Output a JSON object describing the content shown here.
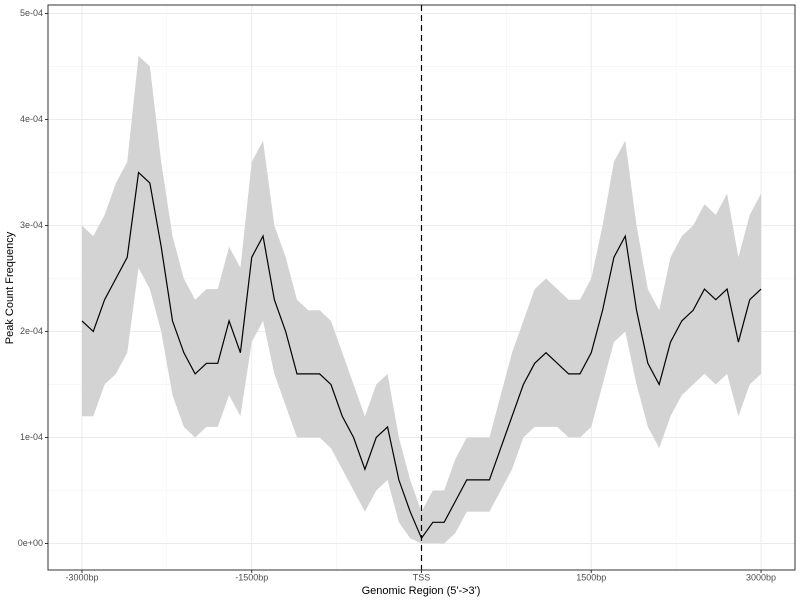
{
  "chart_data": {
    "type": "line",
    "xlabel": "Genomic Region (5'->3')",
    "ylabel": "Peak Count Frequency",
    "x": [
      -3000,
      -2900,
      -2800,
      -2700,
      -2600,
      -2500,
      -2400,
      -2300,
      -2200,
      -2100,
      -2000,
      -1900,
      -1800,
      -1700,
      -1600,
      -1500,
      -1400,
      -1300,
      -1200,
      -1100,
      -1000,
      -900,
      -800,
      -700,
      -600,
      -500,
      -400,
      -300,
      -200,
      -100,
      0,
      100,
      200,
      300,
      400,
      500,
      600,
      700,
      800,
      900,
      1000,
      1100,
      1200,
      1300,
      1400,
      1500,
      1600,
      1700,
      1800,
      1900,
      2000,
      2100,
      2200,
      2300,
      2400,
      2500,
      2600,
      2700,
      2800,
      2900,
      3000
    ],
    "values": [
      0.00021,
      0.0002,
      0.00023,
      0.00025,
      0.00027,
      0.00035,
      0.00034,
      0.00028,
      0.00021,
      0.00018,
      0.00016,
      0.00017,
      0.00017,
      0.00021,
      0.00018,
      0.00027,
      0.00029,
      0.00023,
      0.0002,
      0.00016,
      0.00016,
      0.00016,
      0.00015,
      0.00012,
      0.0001,
      7e-05,
      0.0001,
      0.00011,
      6e-05,
      3e-05,
      5e-06,
      2e-05,
      2e-05,
      4e-05,
      6e-05,
      6e-05,
      6e-05,
      9e-05,
      0.00012,
      0.00015,
      0.00017,
      0.00018,
      0.00017,
      0.00016,
      0.00016,
      0.00018,
      0.00022,
      0.00027,
      0.00029,
      0.00022,
      0.00017,
      0.00015,
      0.00019,
      0.00021,
      0.00022,
      0.00024,
      0.00023,
      0.00024,
      0.00019,
      0.00023,
      0.00024
    ],
    "lower": [
      0.00012,
      0.00012,
      0.00015,
      0.00016,
      0.00018,
      0.00026,
      0.00024,
      0.0002,
      0.00014,
      0.00011,
      0.0001,
      0.00011,
      0.00011,
      0.00014,
      0.00012,
      0.00019,
      0.00021,
      0.00016,
      0.00013,
      0.0001,
      0.0001,
      0.0001,
      9e-05,
      7e-05,
      5e-05,
      3e-05,
      5e-05,
      6e-05,
      2e-05,
      5e-06,
      0,
      0,
      0,
      1e-05,
      3e-05,
      3e-05,
      3e-05,
      5e-05,
      7e-05,
      0.0001,
      0.00011,
      0.00011,
      0.00011,
      0.0001,
      0.0001,
      0.00011,
      0.00015,
      0.00019,
      0.0002,
      0.00015,
      0.00011,
      9e-05,
      0.00012,
      0.00014,
      0.00015,
      0.00016,
      0.00015,
      0.00016,
      0.00012,
      0.00015,
      0.00016
    ],
    "upper": [
      0.0003,
      0.00029,
      0.00031,
      0.00034,
      0.00036,
      0.00046,
      0.00045,
      0.00036,
      0.00029,
      0.00025,
      0.00023,
      0.00024,
      0.00024,
      0.00028,
      0.00026,
      0.00036,
      0.00038,
      0.0003,
      0.00027,
      0.00023,
      0.00022,
      0.00022,
      0.00021,
      0.00018,
      0.00015,
      0.00012,
      0.00015,
      0.00016,
      0.0001,
      6e-05,
      3e-05,
      5e-05,
      5e-05,
      8e-05,
      0.0001,
      0.0001,
      0.0001,
      0.00014,
      0.00018,
      0.00021,
      0.00024,
      0.00025,
      0.00024,
      0.00023,
      0.00023,
      0.00025,
      0.0003,
      0.00036,
      0.00038,
      0.0003,
      0.00024,
      0.00022,
      0.00027,
      0.00029,
      0.0003,
      0.00032,
      0.00031,
      0.00033,
      0.00027,
      0.00031,
      0.00033
    ],
    "color": "#000000",
    "band_color": "#d3d3d3",
    "vline": 0,
    "xlim": [
      -3300,
      3300
    ],
    "ylim": [
      -2.5e-05,
      0.000508
    ],
    "xticks": [
      {
        "value": -3000,
        "label": "-3000bp"
      },
      {
        "value": -1500,
        "label": "-1500bp"
      },
      {
        "value": 0,
        "label": "TSS"
      },
      {
        "value": 1500,
        "label": "1500bp"
      },
      {
        "value": 3000,
        "label": "3000bp"
      }
    ],
    "yticks": [
      {
        "value": 0,
        "label": "0e+00"
      },
      {
        "value": 0.0001,
        "label": "1e-04"
      },
      {
        "value": 0.0002,
        "label": "2e-04"
      },
      {
        "value": 0.0003,
        "label": "3e-04"
      },
      {
        "value": 0.0004,
        "label": "4e-04"
      },
      {
        "value": 0.0005,
        "label": "5e-04"
      }
    ],
    "grid": true,
    "minor_grid": true
  }
}
